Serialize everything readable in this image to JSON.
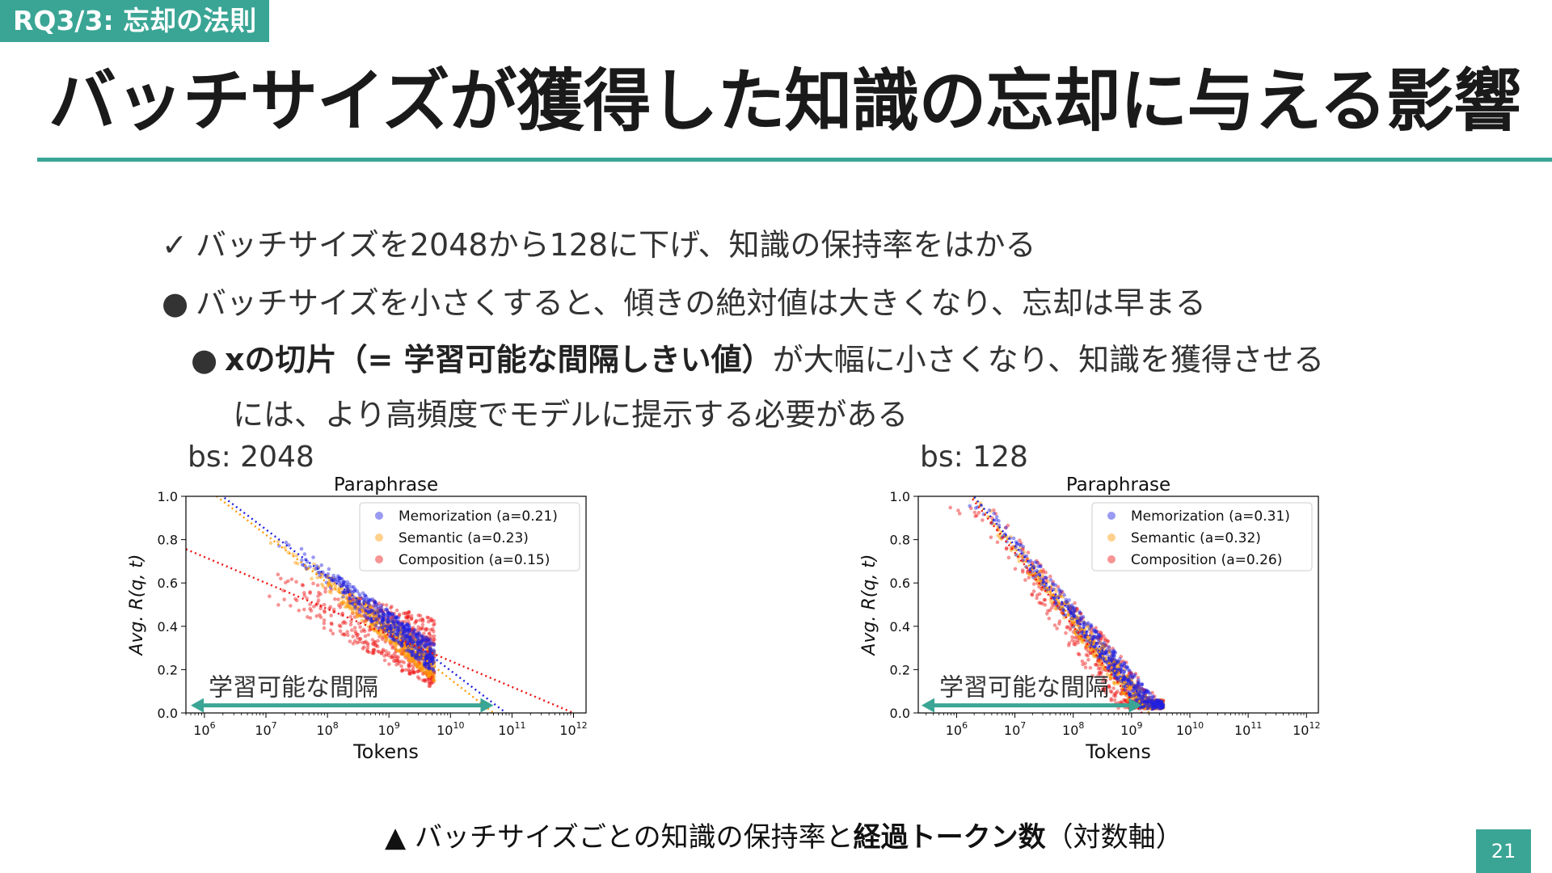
{
  "section_tag": "RQ3/3: 忘却の法則",
  "title": "バッチサイズが獲得した知識の忘却に与える影響",
  "bullets": [
    {
      "marker": "✓",
      "text": "バッチサイズを2048から128に下げ、知識の保持率をはかる"
    },
    {
      "marker": "●",
      "text": "バッチサイズを小さくすると、傾きの絶対値は大きくなり、忘却は早まる"
    },
    {
      "marker": "●",
      "bold": "xの切片（= 学習可能な間隔しきい値）",
      "text": "が大幅に小さくなり、知識を獲得させる",
      "continuation": "には、より高頻度でモデルに提示する必要がある"
    }
  ],
  "caption": {
    "prefix": "▲ バッチサイズごとの知識の保持率と",
    "bold": "経過トークン数",
    "suffix": "（対数軸）"
  },
  "page_number": "21",
  "colors": {
    "accent": "#3aa595",
    "memorization": "#1f1fe0",
    "semantic": "#ff9a00",
    "composition": "#ee1111"
  },
  "chart_data": [
    {
      "type": "scatter",
      "bs_label": "bs: 2048",
      "title": "Paraphrase",
      "xlabel": "Tokens",
      "ylabel": "Avg. R(q, t)",
      "x_scale": "log",
      "xlim": [
        500000.0,
        1600000000000.0
      ],
      "ylim": [
        0,
        1.0
      ],
      "x_ticks": [
        1000000.0,
        10000000.0,
        100000000.0,
        1000000000.0,
        10000000000.0,
        100000000000.0,
        1000000000000.0
      ],
      "x_tick_labels": [
        "10^6",
        "10^7",
        "10^8",
        "10^9",
        "10^10",
        "10^11",
        "10^12"
      ],
      "y_ticks": [
        "0.0",
        "0.2",
        "0.4",
        "0.6",
        "0.8",
        "1.0"
      ],
      "legend_position": "top-right",
      "series": [
        {
          "name": "Memorization (a=0.21)",
          "key": "memorization",
          "x_range": [
            10000000.0,
            5500000000.0
          ],
          "fit_x0": 80000000000.0,
          "fit_y1": 0.63
        },
        {
          "name": "Semantic (a=0.23)",
          "key": "semantic",
          "x_range": [
            10000000.0,
            5500000000.0
          ],
          "fit_x0": 50000000000.0,
          "fit_y1": 0.6
        },
        {
          "name": "Composition (a=0.15)",
          "key": "composition",
          "x_range": [
            4000000.0,
            5500000000.0
          ],
          "fit_x0": 1000000000000.0,
          "fit_y1": 0.48
        }
      ],
      "annotation": {
        "text": "学習可能な間隔",
        "arrow_from": 600000.0,
        "arrow_to": 50000000000.0
      }
    },
    {
      "type": "scatter",
      "bs_label": "bs: 128",
      "title": "Paraphrase",
      "xlabel": "Tokens",
      "ylabel": "Avg. R(q, t)",
      "x_scale": "log",
      "xlim": [
        220000.0,
        1600000000000.0
      ],
      "ylim": [
        0,
        1.0
      ],
      "x_ticks": [
        1000000.0,
        10000000.0,
        100000000.0,
        1000000000.0,
        10000000000.0,
        100000000000.0,
        1000000000000.0
      ],
      "x_tick_labels": [
        "10^6",
        "10^7",
        "10^8",
        "10^9",
        "10^10",
        "10^11",
        "10^12"
      ],
      "y_ticks": [
        "0.0",
        "0.2",
        "0.4",
        "0.6",
        "0.8",
        "1.0"
      ],
      "legend_position": "top-right",
      "series": [
        {
          "name": "Memorization (a=0.31)",
          "key": "memorization",
          "x_range": [
            700000.0,
            3500000000.0
          ],
          "fit_x0": 2500000000.0,
          "fit_y1": 0.45
        },
        {
          "name": "Semantic (a=0.32)",
          "key": "semantic",
          "x_range": [
            700000.0,
            3500000000.0
          ],
          "fit_x0": 2000000000.0,
          "fit_y1": 0.43
        },
        {
          "name": "Composition (a=0.26)",
          "key": "composition",
          "x_range": [
            500000.0,
            3500000000.0
          ],
          "fit_x0": 1500000000.0,
          "fit_y1": 0.4
        }
      ],
      "annotation": {
        "text": "学習可能な間隔",
        "arrow_from": 250000.0,
        "arrow_to": 1500000000.0
      }
    }
  ]
}
